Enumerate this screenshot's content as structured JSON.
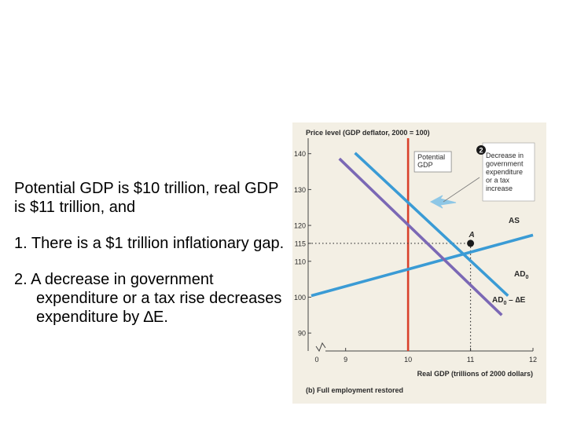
{
  "slide": {
    "intro": "Potential GDP is $10 trillion, real GDP is $11 trillion, and",
    "items": [
      {
        "number": "1.",
        "text": "There is a $1 trillion inflationary gap."
      },
      {
        "number": "2.",
        "text": "A decrease in government expenditure or a tax rise decreases expenditure by ∆E."
      }
    ]
  },
  "chart_data": {
    "type": "line",
    "title": "Price level (GDP deflator, 2000 = 100)",
    "xlabel": "Real GDP (trillions of 2000 dollars)",
    "caption": "(b) Full employment restored",
    "xlim": [
      8.4,
      12
    ],
    "ylim": [
      85,
      143
    ],
    "x_tick_labels": [
      "0",
      "9",
      "10",
      "11",
      "12"
    ],
    "x_ticks": [
      9,
      10,
      11,
      12
    ],
    "y_ticks": [
      90,
      100,
      110,
      115,
      120,
      130,
      140
    ],
    "colors": {
      "curve": "#3a9bd5",
      "shifted": "#7b68b5",
      "potential": "#d9402b",
      "accent": "#1a1a1a"
    },
    "series": [
      {
        "name": "AS",
        "label": "AS",
        "points": [
          [
            8.45,
            100.4
          ],
          [
            12.0,
            117.3
          ]
        ]
      },
      {
        "name": "AD0",
        "label": "AD",
        "label_sub": "0",
        "points": [
          [
            9.15,
            140.2
          ],
          [
            11.6,
            100.4
          ]
        ]
      },
      {
        "name": "AD0-dE",
        "label": "AD",
        "label_sub": "0",
        "label_suffix": " – ∆E",
        "points": [
          [
            8.9,
            138.6
          ],
          [
            11.5,
            95.0
          ]
        ]
      }
    ],
    "potential_gdp": {
      "x": 10,
      "label_lines": [
        "Potential",
        "GDP"
      ]
    },
    "point_A": {
      "x": 11,
      "y": 115,
      "label": "A"
    },
    "annotation": {
      "badge": "2",
      "lines": [
        "Decrease in",
        "government",
        "expenditure",
        "or a tax",
        "increase"
      ]
    }
  }
}
